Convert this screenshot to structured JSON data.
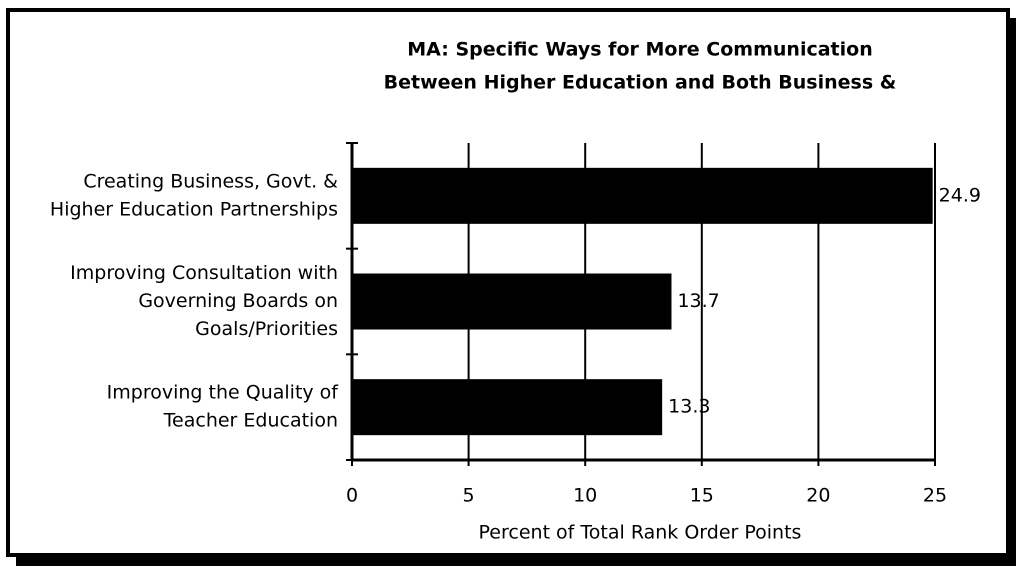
{
  "chart_data": {
    "type": "barh",
    "title": [
      "MA:  Specific Ways for More Communication",
      "Between Higher Education and Both Business &"
    ],
    "categories": [
      [
        "Creating Business, Govt. &",
        "Higher Education Partnerships"
      ],
      [
        "Improving Consultation with",
        "Governing Boards on",
        "Goals/Priorities"
      ],
      [
        "Improving the Quality of",
        "Teacher Education"
      ]
    ],
    "values": [
      24.9,
      13.7,
      13.3
    ],
    "color": "#000000",
    "xlim": [
      0,
      25
    ],
    "xticks": [
      0,
      5,
      10,
      15,
      20,
      25
    ],
    "xlabel": "Percent of Total Rank Order Points",
    "grid": true
  }
}
